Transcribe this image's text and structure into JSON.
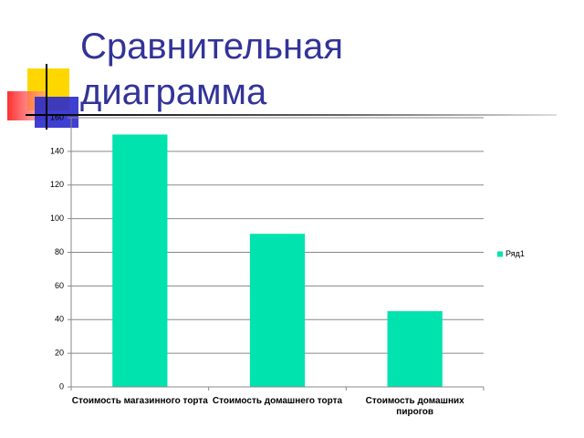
{
  "chart_data": {
    "type": "bar",
    "title": "Сравнительная диаграмма",
    "categories": [
      "Стоимость магазинного торта",
      "Стоимость домашнего торта",
      "Стоимость домашних пирогов"
    ],
    "series": [
      {
        "name": "Ряд1",
        "color": "#00e3ae",
        "values": [
          150,
          91,
          45
        ]
      }
    ],
    "ylim": [
      0,
      160
    ],
    "yticks": [
      0,
      20,
      40,
      60,
      80,
      100,
      120,
      140,
      160
    ],
    "grid": true,
    "legend": "right"
  }
}
